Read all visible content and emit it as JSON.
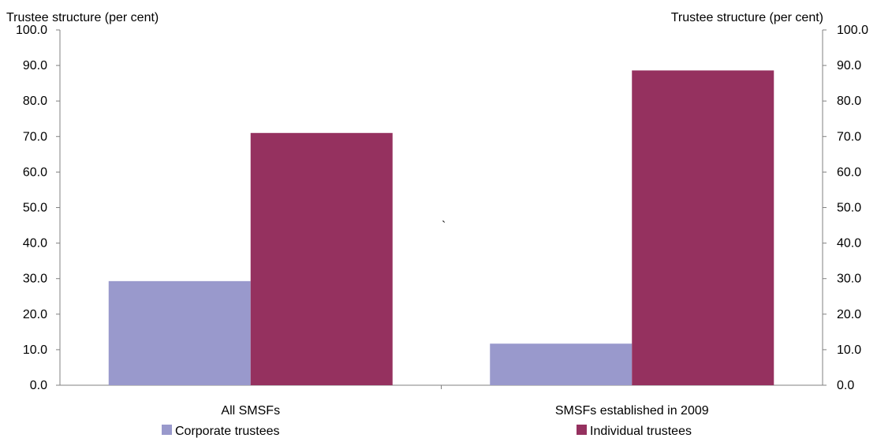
{
  "chart_data": {
    "type": "bar",
    "title": "",
    "ylabel_left": "Trustee structure (per cent)",
    "ylabel_right": "Trustee structure (per cent)",
    "xlabel": "",
    "ylim": [
      0,
      100
    ],
    "yticks": [
      "0.0",
      "10.0",
      "20.0",
      "30.0",
      "40.0",
      "50.0",
      "60.0",
      "70.0",
      "80.0",
      "90.0",
      "100.0"
    ],
    "categories": [
      "All SMSFs",
      "SMSFs established in 2009"
    ],
    "series": [
      {
        "name": "Corporate trustees",
        "color": "#9999cc",
        "values": [
          29.3,
          11.7
        ]
      },
      {
        "name": "Individual trustees",
        "color": "#95315f",
        "values": [
          71.0,
          88.6
        ]
      }
    ],
    "annotation": "`",
    "grid": false,
    "legend_position": "bottom"
  }
}
